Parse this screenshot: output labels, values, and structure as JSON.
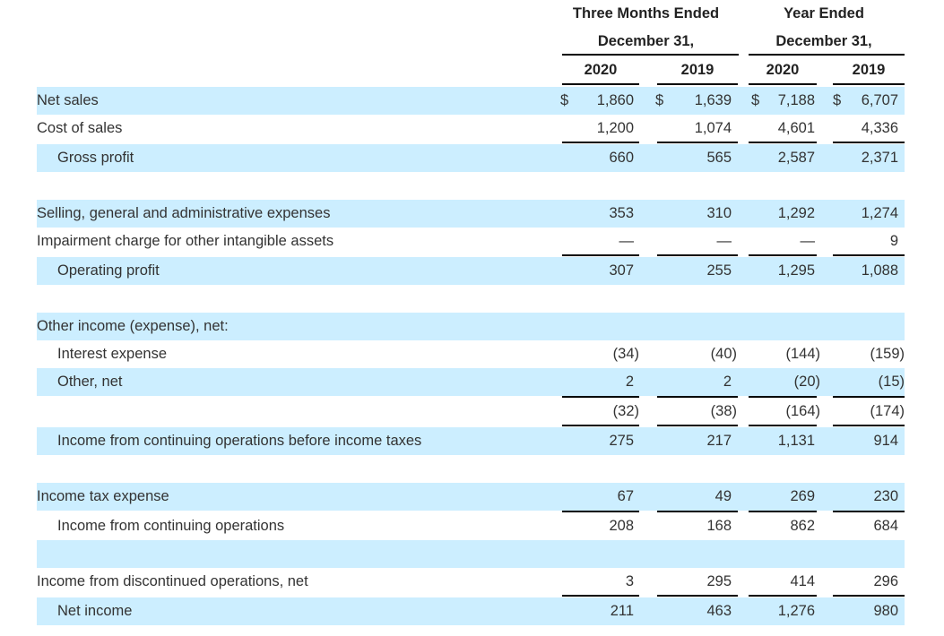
{
  "header": {
    "group1_line1": "Three Months Ended",
    "group1_line2": "December 31,",
    "group2_line1": "Year Ended",
    "group2_line2": "December 31,",
    "years": [
      "2020",
      "2019",
      "2020",
      "2019"
    ]
  },
  "currency_symbol": "$",
  "rows": [
    {
      "label": "Net sales",
      "values": [
        "1,860",
        "1,639",
        "7,188",
        "6,707"
      ],
      "dollar": true
    },
    {
      "label": "Cost of sales",
      "values": [
        "1,200",
        "1,074",
        "4,601",
        "4,336"
      ]
    },
    {
      "label": "Gross profit",
      "values": [
        "660",
        "565",
        "2,587",
        "2,371"
      ]
    },
    {
      "label": "Selling, general and administrative expenses",
      "values": [
        "353",
        "310",
        "1,292",
        "1,274"
      ]
    },
    {
      "label": "Impairment charge for other intangible assets",
      "values": [
        "—",
        "—",
        "—",
        "9"
      ]
    },
    {
      "label": "Operating profit",
      "values": [
        "307",
        "255",
        "1,295",
        "1,088"
      ]
    },
    {
      "label": "Other income (expense), net:",
      "values": [
        "",
        "",
        "",
        ""
      ]
    },
    {
      "label": "Interest expense",
      "values": [
        "(34)",
        "(40)",
        "(144)",
        "(159)"
      ]
    },
    {
      "label": "Other, net",
      "values": [
        "2",
        "2",
        "(20)",
        "(15)"
      ]
    },
    {
      "label": "",
      "values": [
        "(32)",
        "(38)",
        "(164)",
        "(174)"
      ]
    },
    {
      "label": "Income from continuing operations before income taxes",
      "values": [
        "275",
        "217",
        "1,131",
        "914"
      ]
    },
    {
      "label": "Income tax expense",
      "values": [
        "67",
        "49",
        "269",
        "230"
      ]
    },
    {
      "label": "Income from continuing operations",
      "values": [
        "208",
        "168",
        "862",
        "684"
      ]
    },
    {
      "label": "",
      "values": [
        "",
        "",
        "",
        ""
      ]
    },
    {
      "label": "Income from discontinued operations, net",
      "values": [
        "3",
        "295",
        "414",
        "296"
      ]
    },
    {
      "label": "Net income",
      "values": [
        "211",
        "463",
        "1,276",
        "980"
      ]
    }
  ]
}
